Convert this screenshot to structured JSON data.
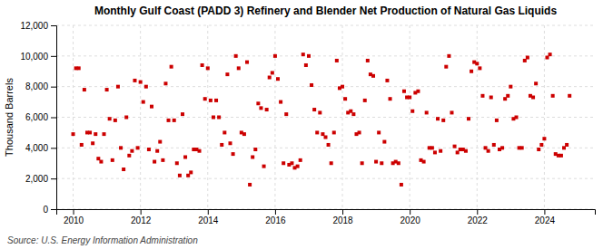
{
  "chart_data": {
    "type": "scatter",
    "title": "Monthly Gulf Coast (PADD 3) Refinery and Blender Net Production of Natural Gas Liquids",
    "y_label": "Thousand Barrels",
    "annotations": [
      "Source: U.S. Energy Information Administration"
    ],
    "color": "#cc0000",
    "marker": "square",
    "grid": true,
    "xlim": [
      2009.5,
      2025.5
    ],
    "ylim": [
      0,
      12000
    ],
    "xticks": [
      2010,
      2012,
      2014,
      2016,
      2018,
      2020,
      2022,
      2024
    ],
    "yticks": [
      0,
      {
        "value": 2000,
        "label": "2,000"
      },
      {
        "value": 4000,
        "label": "4,000"
      },
      {
        "value": 6000,
        "label": "6,000"
      },
      {
        "value": 8000,
        "label": "8,000"
      },
      {
        "value": 10000,
        "label": "10,000"
      },
      {
        "value": 12000,
        "label": "12,000"
      }
    ],
    "x": [
      2010.0,
      2010.083,
      2010.167,
      2010.25,
      2010.333,
      2010.417,
      2010.5,
      2010.583,
      2010.667,
      2010.75,
      2010.833,
      2010.917,
      2011.0,
      2011.083,
      2011.167,
      2011.25,
      2011.333,
      2011.417,
      2011.5,
      2011.583,
      2011.667,
      2011.75,
      2011.833,
      2011.917,
      2012.0,
      2012.083,
      2012.167,
      2012.25,
      2012.333,
      2012.417,
      2012.5,
      2012.583,
      2012.667,
      2012.75,
      2012.833,
      2012.917,
      2013.0,
      2013.083,
      2013.167,
      2013.25,
      2013.333,
      2013.417,
      2013.5,
      2013.583,
      2013.667,
      2013.75,
      2013.833,
      2013.917,
      2014.0,
      2014.083,
      2014.167,
      2014.25,
      2014.333,
      2014.417,
      2014.5,
      2014.583,
      2014.667,
      2014.75,
      2014.833,
      2014.917,
      2015.0,
      2015.083,
      2015.167,
      2015.25,
      2015.333,
      2015.417,
      2015.5,
      2015.583,
      2015.667,
      2015.75,
      2015.833,
      2015.917,
      2016.0,
      2016.083,
      2016.167,
      2016.25,
      2016.333,
      2016.417,
      2016.5,
      2016.583,
      2016.667,
      2016.75,
      2016.833,
      2016.917,
      2017.0,
      2017.083,
      2017.167,
      2017.25,
      2017.333,
      2017.417,
      2017.5,
      2017.583,
      2017.667,
      2017.75,
      2017.833,
      2017.917,
      2018.0,
      2018.083,
      2018.167,
      2018.25,
      2018.333,
      2018.417,
      2018.5,
      2018.583,
      2018.667,
      2018.75,
      2018.833,
      2018.917,
      2019.0,
      2019.083,
      2019.167,
      2019.25,
      2019.333,
      2019.417,
      2019.5,
      2019.583,
      2019.667,
      2019.75,
      2019.833,
      2019.917,
      2020.0,
      2020.083,
      2020.167,
      2020.25,
      2020.333,
      2020.417,
      2020.5,
      2020.583,
      2020.667,
      2020.75,
      2020.833,
      2020.917,
      2021.0,
      2021.083,
      2021.167,
      2021.25,
      2021.333,
      2021.417,
      2021.5,
      2021.583,
      2021.667,
      2021.75,
      2021.833,
      2021.917,
      2022.0,
      2022.083,
      2022.167,
      2022.25,
      2022.333,
      2022.417,
      2022.5,
      2022.583,
      2022.667,
      2022.75,
      2022.833,
      2022.917,
      2023.0,
      2023.083,
      2023.167,
      2023.25,
      2023.333,
      2023.417,
      2023.5,
      2023.583,
      2023.667,
      2023.75,
      2023.833,
      2023.917,
      2024.0,
      2024.083,
      2024.167,
      2024.25,
      2024.333,
      2024.417,
      2024.5,
      2024.583,
      2024.667,
      2024.75
    ],
    "values": [
      4900,
      9200,
      9200,
      4200,
      7800,
      5000,
      5000,
      4300,
      4900,
      3300,
      3100,
      4900,
      7800,
      5900,
      3200,
      5800,
      8000,
      4000,
      2600,
      6000,
      3500,
      3800,
      8400,
      4000,
      8300,
      7000,
      8000,
      3900,
      6700,
      3100,
      3800,
      4400,
      3200,
      8200,
      5800,
      9300,
      5800,
      3000,
      2200,
      6200,
      3400,
      2200,
      2400,
      3900,
      3900,
      3800,
      9400,
      7200,
      9200,
      7100,
      6000,
      7100,
      6000,
      4200,
      5000,
      8800,
      4300,
      3600,
      10000,
      9200,
      5000,
      4900,
      9600,
      1600,
      3400,
      3900,
      6900,
      6600,
      2800,
      6500,
      8600,
      8900,
      10000,
      8500,
      7000,
      3000,
      6200,
      2900,
      3000,
      2700,
      2800,
      3200,
      10100,
      9400,
      10000,
      8100,
      6500,
      5000,
      6300,
      4900,
      4700,
      4200,
      3000,
      5000,
      9700,
      7900,
      8000,
      7200,
      6300,
      6400,
      6200,
      4900,
      5000,
      3000,
      7100,
      9700,
      8800,
      8700,
      3100,
      5000,
      3000,
      4400,
      8400,
      7200,
      3000,
      3100,
      3000,
      1600,
      7700,
      7300,
      7300,
      6400,
      7600,
      7700,
      3200,
      3100,
      6300,
      4000,
      4000,
      3700,
      5900,
      3800,
      5800,
      9300,
      10000,
      6300,
      4100,
      3700,
      3900,
      3900,
      3800,
      5900,
      9000,
      9600,
      9500,
      9200,
      7400,
      4000,
      3800,
      7300,
      4200,
      5800,
      3900,
      4000,
      7200,
      7400,
      8000,
      5900,
      6000,
      4000,
      4000,
      9700,
      9900,
      7400,
      7300,
      8200,
      3900,
      4200,
      4600,
      9900,
      10100,
      7400,
      3600,
      3500,
      3500,
      4000,
      4200,
      7400
    ]
  }
}
